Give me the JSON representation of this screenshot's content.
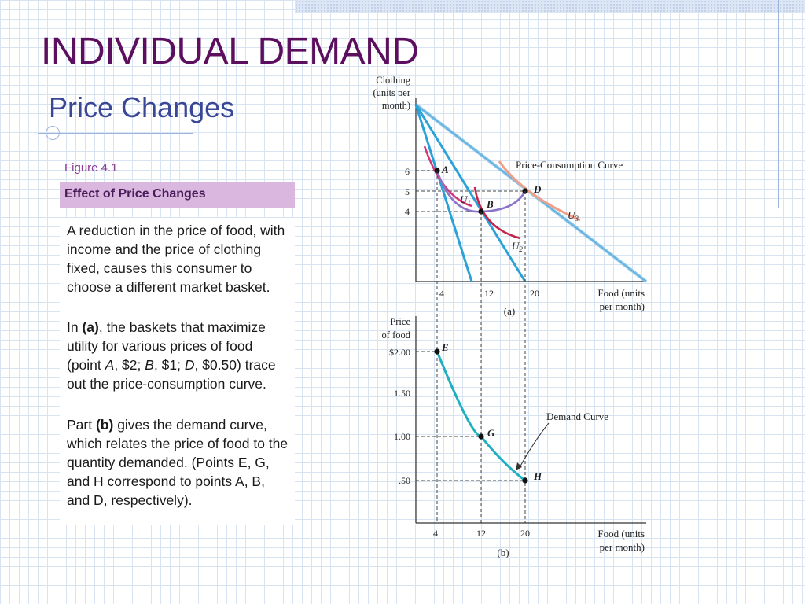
{
  "slide": {
    "title": "INDIVIDUAL DEMAND",
    "subtitle": "Price Changes",
    "figure_label": "Figure 4.1",
    "figure_title": "Effect of Price Changes",
    "paragraphs": {
      "p1": "A reduction in the price of food, with income and the price of clothing fixed, causes this consumer to choose a different market basket.",
      "p2": {
        "t1": "In ",
        "t2": "(a)",
        "t3": ", the baskets that maximize utility for various prices of food (point ",
        "t4": "A",
        "t5": ", $2; ",
        "t6": "B",
        "t7": ", $1; ",
        "t8": "D",
        "t9": ", $0.50) trace out the price-consumption curve."
      },
      "p3": {
        "t1": "Part ",
        "t2": "(b)",
        "t3": " gives the demand curve, which relates the price of food to the quantity demanded. (Points E, G, and H correspond to points A, B, and D, respectively)."
      }
    }
  },
  "panel_a": {
    "ylabel": [
      "Clothing",
      "(units per",
      "month)"
    ],
    "xlabel": [
      "Food (units",
      "per month)"
    ],
    "caption": "(a)",
    "y_ticks": [
      "6",
      "5",
      "4"
    ],
    "x_ticks": [
      "4",
      "12",
      "20"
    ],
    "curve_label": "Price-Consumption Curve",
    "points": {
      "A": "A",
      "B": "B",
      "D": "D"
    },
    "u_labels": {
      "u1": "U",
      "u1_sub": "1",
      "u2": "U",
      "u2_sub": "2",
      "u3": "U",
      "u3_sub": "3"
    }
  },
  "panel_b": {
    "ylabel": [
      "Price",
      "of food"
    ],
    "xlabel": [
      "Food (units",
      "per month)"
    ],
    "caption": "(b)",
    "y_ticks": [
      "$2.00",
      "1.50",
      "1.00",
      ".50"
    ],
    "x_ticks": [
      "4",
      "12",
      "20"
    ],
    "curve_label": "Demand Curve",
    "points": {
      "E": "E",
      "G": "G",
      "H": "H"
    }
  },
  "colors": {
    "title": "#5c0f5e",
    "subtitle": "#3a4796",
    "budget_line": "#2aa2d8",
    "budget_line_light": "#8cc6e8",
    "u1": "#d8367a",
    "u2": "#c4254a",
    "u3": "#f0a08a",
    "pcc": "#8a74c8",
    "demand": "#1fb0c0"
  }
}
